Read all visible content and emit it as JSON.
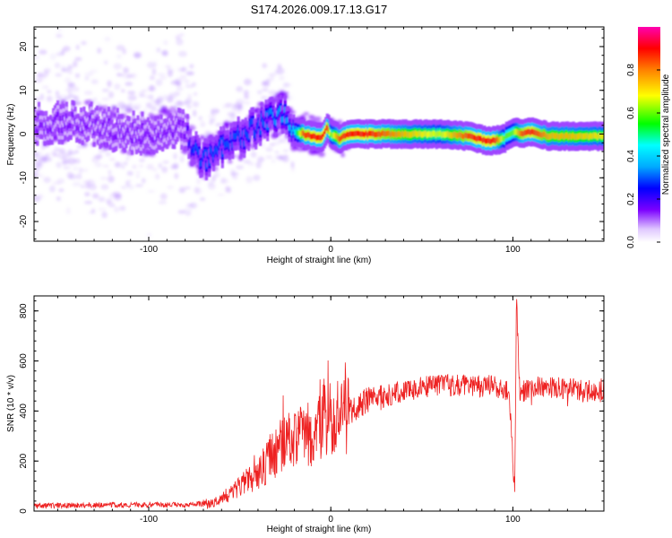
{
  "chart_data": [
    {
      "type": "heatmap",
      "title": "S174.2026.009.17.13.G17",
      "xlabel": "Height of straight line (km)",
      "ylabel": "Frequency (Hz)",
      "xlim": [
        -163,
        150
      ],
      "ylim": [
        -24.5,
        24.5
      ],
      "xticks": [
        -100,
        0,
        100
      ],
      "yticks": [
        -20,
        -10,
        0,
        10,
        20
      ],
      "colorbar": {
        "label": "Normalized spectral amplitude",
        "range": [
          0,
          1
        ],
        "ticks": [
          0.0,
          0.2,
          0.4,
          0.6,
          0.8
        ],
        "colormap": [
          "#ffffff",
          "#7b00ff",
          "#0000ff",
          "#00ffff",
          "#00ff00",
          "#ffff00",
          "#ff8000",
          "#ff0000",
          "#ff00b0"
        ]
      },
      "ridge": {
        "x": [
          -163,
          -140,
          -120,
          -100,
          -90,
          -80,
          -75,
          -70,
          -60,
          -50,
          -40,
          -30,
          -25,
          -20,
          -15,
          -10,
          -5,
          -2,
          0,
          5,
          10,
          20,
          40,
          60,
          75,
          80,
          85,
          90,
          95,
          100,
          105,
          110,
          120,
          130,
          150
        ],
        "freq": [
          2,
          3,
          1,
          0,
          1,
          1,
          -4,
          -6,
          -3,
          -1,
          2,
          4,
          5,
          0.5,
          0,
          -0.5,
          -1,
          1.5,
          0,
          -1,
          0,
          0,
          0,
          0,
          -0.5,
          -1,
          -1.5,
          -1.5,
          -1,
          0.5,
          0,
          0.5,
          -0.5,
          -0.5,
          -0.5
        ],
        "amplitude": [
          0.15,
          0.15,
          0.15,
          0.15,
          0.15,
          0.15,
          0.3,
          0.3,
          0.3,
          0.3,
          0.3,
          0.35,
          0.35,
          0.4,
          0.85,
          0.9,
          0.9,
          0.9,
          0.6,
          0.85,
          0.9,
          0.9,
          0.75,
          0.65,
          0.85,
          0.9,
          0.9,
          0.9,
          0.6,
          0.6,
          0.85,
          0.9,
          0.75,
          0.75,
          0.7
        ]
      }
    },
    {
      "type": "line",
      "xlabel": "Height of straight line (km)",
      "ylabel": "SNR (10 * v/v)",
      "xlim": [
        -163,
        150
      ],
      "ylim": [
        0,
        860
      ],
      "xticks": [
        -100,
        0,
        100
      ],
      "yticks": [
        0,
        200,
        400,
        600,
        800
      ],
      "series": [
        {
          "name": "SNR",
          "color": "#ee2222",
          "x": [
            -163,
            -150,
            -120,
            -100,
            -80,
            -65,
            -60,
            -55,
            -50,
            -45,
            -40,
            -35,
            -30,
            -25,
            -20,
            -15,
            -10,
            -5,
            0,
            5,
            10,
            15,
            20,
            25,
            30,
            40,
            50,
            60,
            70,
            80,
            90,
            95,
            98,
            100,
            101,
            102,
            104,
            106,
            110,
            120,
            130,
            140,
            150
          ],
          "y": [
            20,
            22,
            25,
            25,
            25,
            30,
            50,
            70,
            100,
            130,
            150,
            190,
            240,
            280,
            280,
            300,
            320,
            360,
            380,
            370,
            400,
            420,
            440,
            450,
            460,
            480,
            495,
            500,
            505,
            500,
            500,
            490,
            470,
            200,
            80,
            850,
            440,
            480,
            500,
            490,
            490,
            480,
            490
          ]
        }
      ]
    }
  ]
}
